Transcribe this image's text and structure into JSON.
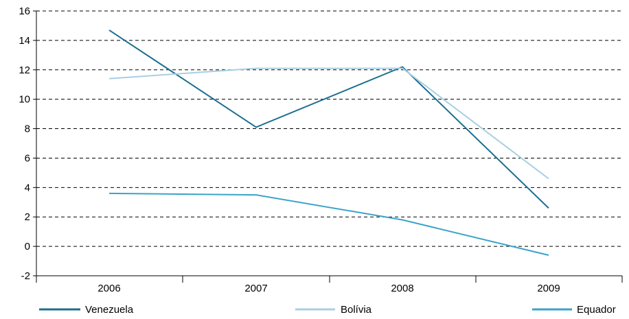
{
  "chart_data": {
    "type": "line",
    "categories": [
      "2006",
      "2007",
      "2008",
      "2009"
    ],
    "ylim": [
      -2,
      16
    ],
    "yticks": [
      -2,
      0,
      2,
      4,
      6,
      8,
      10,
      12,
      14,
      16
    ],
    "grid": "horizontal-dashed",
    "legend_position": "bottom",
    "series": [
      {
        "name": "Venezuela",
        "color": "#1b6e8f",
        "values": [
          14.7,
          8.1,
          12.2,
          2.6
        ]
      },
      {
        "name": "Bolívia",
        "color": "#a7cfe3",
        "values": [
          11.4,
          12.1,
          12.1,
          4.6
        ]
      },
      {
        "name": "Equador",
        "color": "#3aa3c9",
        "values": [
          3.6,
          3.5,
          1.8,
          -0.6
        ]
      }
    ]
  }
}
